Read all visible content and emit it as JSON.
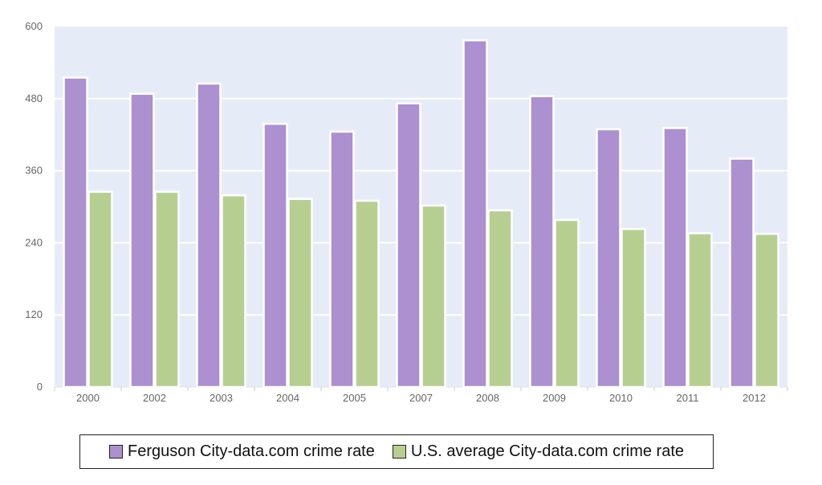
{
  "chart_data": {
    "type": "bar",
    "categories": [
      "2000",
      "2002",
      "2003",
      "2004",
      "2005",
      "2007",
      "2008",
      "2009",
      "2010",
      "2011",
      "2012"
    ],
    "series": [
      {
        "name": "Ferguson City-data.com crime rate",
        "color": "#ac90d0",
        "values": [
          515,
          488,
          505,
          438,
          425,
          472,
          577,
          484,
          429,
          431,
          380
        ]
      },
      {
        "name": "U.S. average City-data.com crime rate",
        "color": "#b6cf91",
        "values": [
          325,
          325,
          319,
          313,
          310,
          302,
          294,
          278,
          263,
          256,
          255
        ]
      }
    ],
    "ylim": [
      0,
      600
    ],
    "yticks": [
      "0",
      "120",
      "240",
      "360",
      "480",
      "600"
    ],
    "grid": true,
    "legend_position": "bottom-center",
    "plot_background": "#e6ecf7"
  }
}
